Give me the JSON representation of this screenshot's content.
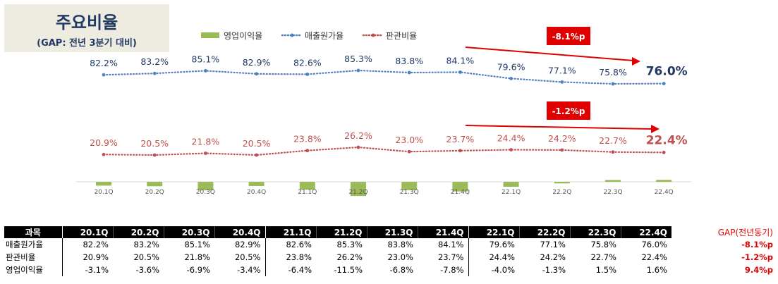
{
  "title": "주요비율",
  "subtitle": "(GAP: 전년 3분기 대비)",
  "colors": {
    "op_margin": "#9bbb59",
    "cogs": "#4f81bd",
    "sga": "#c0504d",
    "gap": "#e00000",
    "title_bg": "#eeece1",
    "cogs_text": "#1f3864",
    "sga_text": "#c0504d"
  },
  "chart_data": {
    "type": "line",
    "categories": [
      "20.1Q",
      "20.2Q",
      "20.3Q",
      "20.4Q",
      "21.1Q",
      "21.2Q",
      "21.3Q",
      "21.4Q",
      "22.1Q",
      "22.2Q",
      "22.3Q",
      "22.4Q"
    ],
    "series": [
      {
        "name": "영업이익율",
        "type": "bar",
        "values": [
          -3.1,
          -3.6,
          -6.9,
          -3.4,
          -6.4,
          -11.5,
          -6.8,
          -7.8,
          -4.0,
          -1.3,
          1.5,
          1.6
        ]
      },
      {
        "name": "매출원가율",
        "type": "line",
        "values": [
          82.2,
          83.2,
          85.1,
          82.9,
          82.6,
          85.3,
          83.8,
          84.1,
          79.6,
          77.1,
          75.8,
          76.0
        ],
        "labels": [
          "82.2%",
          "83.2%",
          "85.1%",
          "82.9%",
          "82.6%",
          "85.3%",
          "83.8%",
          "84.1%",
          "79.6%",
          "77.1%",
          "75.8%",
          "76.0%"
        ]
      },
      {
        "name": "판관비율",
        "type": "line",
        "values": [
          20.9,
          20.5,
          21.8,
          20.5,
          23.8,
          26.2,
          23.0,
          23.7,
          24.4,
          24.2,
          22.7,
          22.4
        ],
        "labels": [
          "20.9%",
          "20.5%",
          "21.8%",
          "20.5%",
          "23.8%",
          "26.2%",
          "23.0%",
          "23.7%",
          "24.4%",
          "24.2%",
          "22.7%",
          "22.4%"
        ]
      }
    ],
    "annotations": [
      "-8.1%p",
      "-1.2%p"
    ],
    "legend_position": "top"
  },
  "table": {
    "header_label": "과목",
    "gap_header": "GAP(전년동기)",
    "columns": [
      "20.1Q",
      "20.2Q",
      "20.3Q",
      "20.4Q",
      "21.1Q",
      "21.2Q",
      "21.3Q",
      "21.4Q",
      "22.1Q",
      "22.2Q",
      "22.3Q",
      "22.4Q"
    ],
    "rows": [
      {
        "label": "매출원가율",
        "values": [
          "82.2%",
          "83.2%",
          "85.1%",
          "82.9%",
          "82.6%",
          "85.3%",
          "83.8%",
          "84.1%",
          "79.6%",
          "77.1%",
          "75.8%",
          "76.0%"
        ],
        "gap": "-8.1%p"
      },
      {
        "label": "판관비율",
        "values": [
          "20.9%",
          "20.5%",
          "21.8%",
          "20.5%",
          "23.8%",
          "26.2%",
          "23.0%",
          "23.7%",
          "24.4%",
          "24.2%",
          "22.7%",
          "22.4%"
        ],
        "gap": "-1.2%p"
      },
      {
        "label": "영업이익율",
        "values": [
          "-3.1%",
          "-3.6%",
          "-6.9%",
          "-3.4%",
          "-6.4%",
          "-11.5%",
          "-6.8%",
          "-7.8%",
          "-4.0%",
          "-1.3%",
          "1.5%",
          "1.6%"
        ],
        "gap": "9.4%p"
      }
    ]
  }
}
